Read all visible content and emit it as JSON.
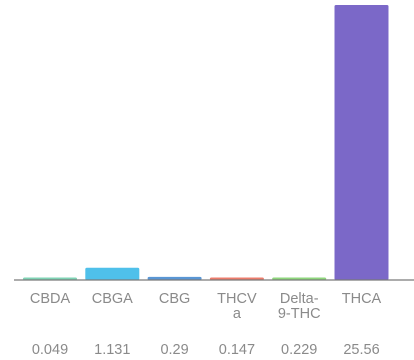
{
  "chart_data": {
    "type": "bar",
    "categories": [
      [
        "CBDA"
      ],
      [
        "CBGA"
      ],
      [
        "CBG"
      ],
      [
        "THCV",
        "a"
      ],
      [
        "Delta-",
        "9-THC"
      ],
      [
        "THCA"
      ]
    ],
    "values": [
      0.049,
      1.131,
      0.29,
      0.147,
      0.229,
      25.56
    ],
    "value_labels": [
      "0.049",
      "1.131",
      "0.29",
      "0.147",
      "0.229",
      "25.56"
    ],
    "colors": [
      "#7fd3b4",
      "#4fc0ea",
      "#5a96d4",
      "#ec7c6c",
      "#8ed67c",
      "#7b68c8"
    ],
    "axis_color": "#7a7a7a",
    "ylim": [
      0,
      25.56
    ],
    "grid": false,
    "legend": "none"
  }
}
